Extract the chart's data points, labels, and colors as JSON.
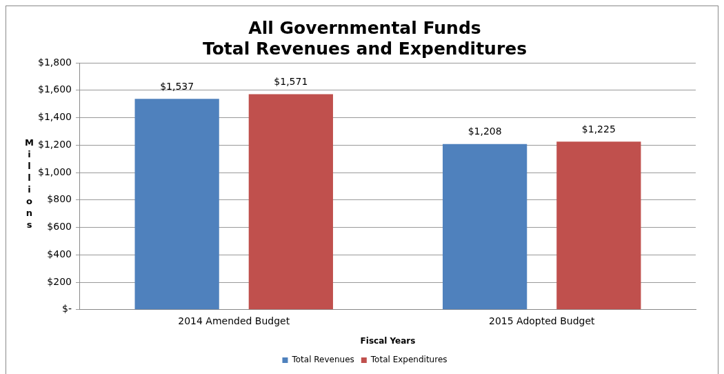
{
  "chart_data": {
    "type": "bar",
    "title": "All Governmental Funds\nTotal Revenues and Expenditures",
    "xlabel": "Fiscal Years",
    "ylabel": "Millions",
    "categories": [
      "2014 Amended Budget",
      "2015 Adopted Budget"
    ],
    "series": [
      {
        "name": "Total Revenues",
        "color": "#4f81bd",
        "values": [
          1537,
          1208
        ],
        "value_labels": [
          "$1,537",
          "$1,208"
        ]
      },
      {
        "name": "Total Expenditures",
        "color": "#c0504d",
        "values": [
          1571,
          1225
        ],
        "value_labels": [
          "$1,571",
          "$1,225"
        ]
      }
    ],
    "ylim": [
      0,
      1800
    ],
    "yticks": [
      {
        "value": 0,
        "label": "$-"
      },
      {
        "value": 200,
        "label": "$200"
      },
      {
        "value": 400,
        "label": "$400"
      },
      {
        "value": 600,
        "label": "$600"
      },
      {
        "value": 800,
        "label": "$800"
      },
      {
        "value": 1000,
        "label": "$1,000"
      },
      {
        "value": 1200,
        "label": "$1,200"
      },
      {
        "value": 1400,
        "label": "$1,400"
      },
      {
        "value": 1600,
        "label": "$1,600"
      },
      {
        "value": 1800,
        "label": "$1,800"
      }
    ],
    "grid": "y",
    "legend": "bottom"
  }
}
